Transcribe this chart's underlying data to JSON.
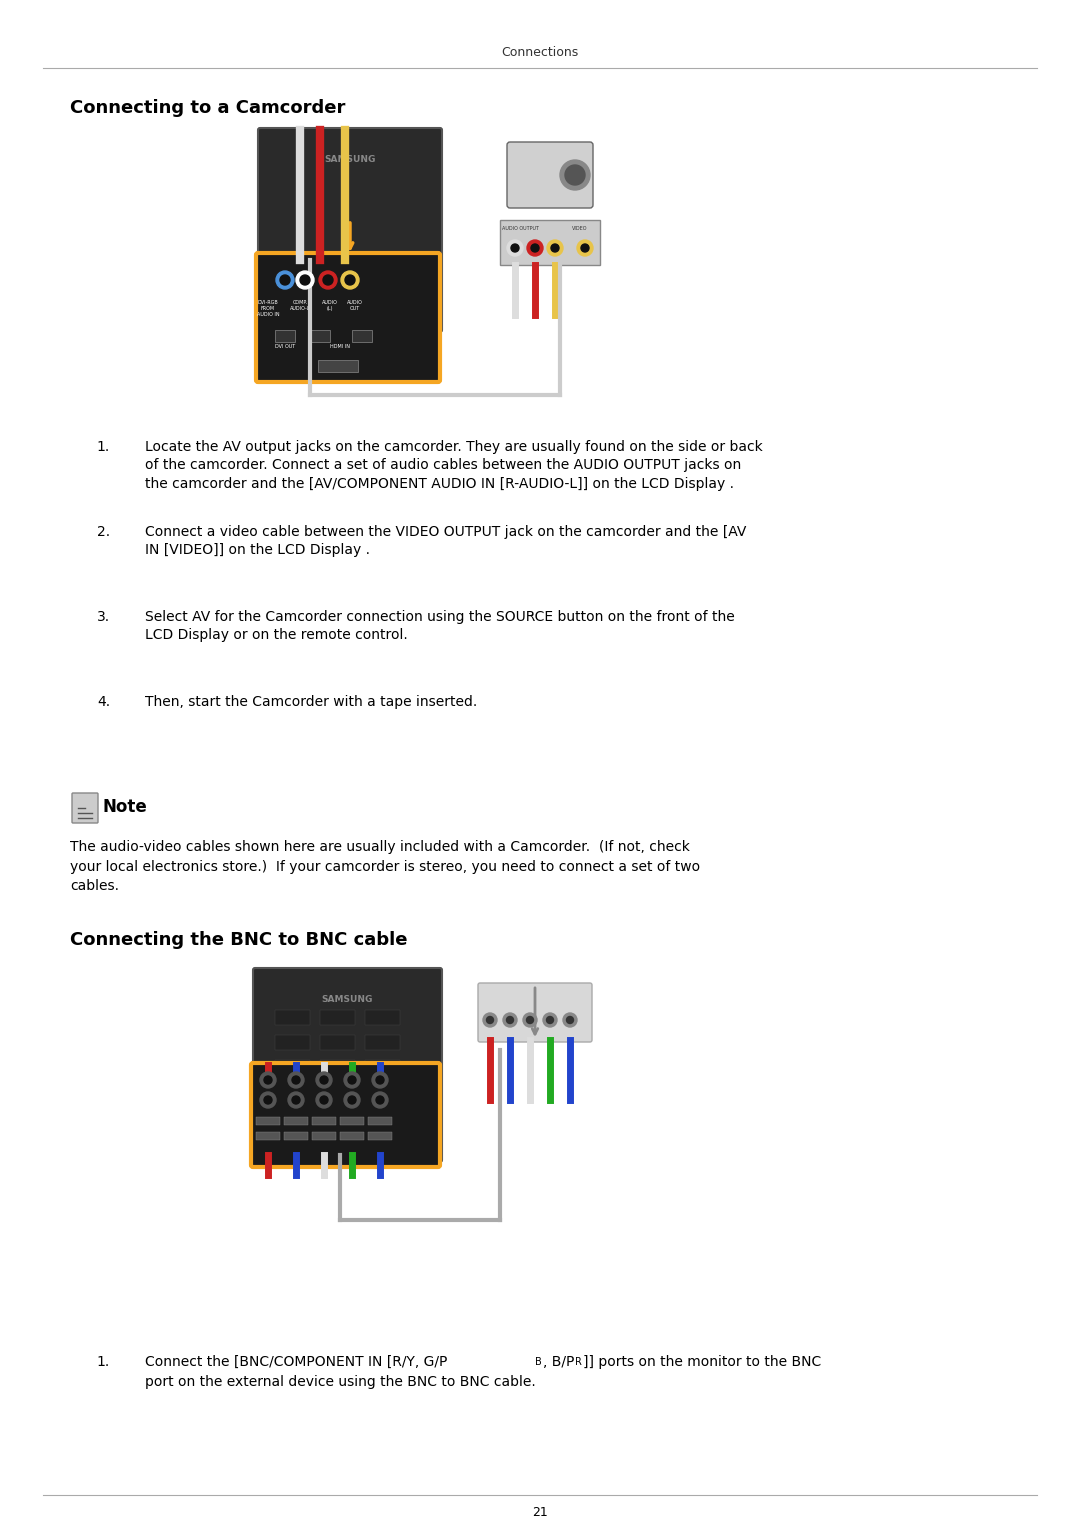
{
  "page_header": "Connections",
  "section1_title": "Connecting to a Camcorder",
  "section2_title": "Connecting the BNC to BNC cable",
  "note_title": "Note",
  "note_text": "The audio-video cables shown here are usually included with a Camcorder.  (If not, check\nyour local electronics store.)  If your camcorder is stereo, you need to connect a set of two\ncables.",
  "steps": [
    "Locate the AV output jacks on the camcorder. They are usually found on the side or back\nof the camcorder. Connect a set of audio cables between the AUDIO OUTPUT jacks on\nthe camcorder and the [AV/COMPONENT AUDIO IN [R-AUDIO-L]] on the LCD Display .",
    "Connect a video cable between the VIDEO OUTPUT jack on the camcorder and the [AV\nIN [VIDEO]] on the LCD Display .",
    "Select AV for the Camcorder connection using the SOURCE button on the front of the\nLCD Display or on the remote control.",
    "Then, start the Camcorder with a tape inserted."
  ],
  "bnc_step": "Connect the [BNC/COMPONENT IN [R/Y, G/P",
  "bnc_step2": ", B/P",
  "bnc_step3": "]] ports on the monitor to the BNC\nport on the external device using the BNC to BNC cable.",
  "bg_color": "#ffffff",
  "text_color": "#000000",
  "header_color": "#333333",
  "line_color": "#aaaaaa",
  "page_number": "21",
  "font_size_header": 9,
  "font_size_title": 13,
  "font_size_body": 10,
  "font_size_step": 10
}
